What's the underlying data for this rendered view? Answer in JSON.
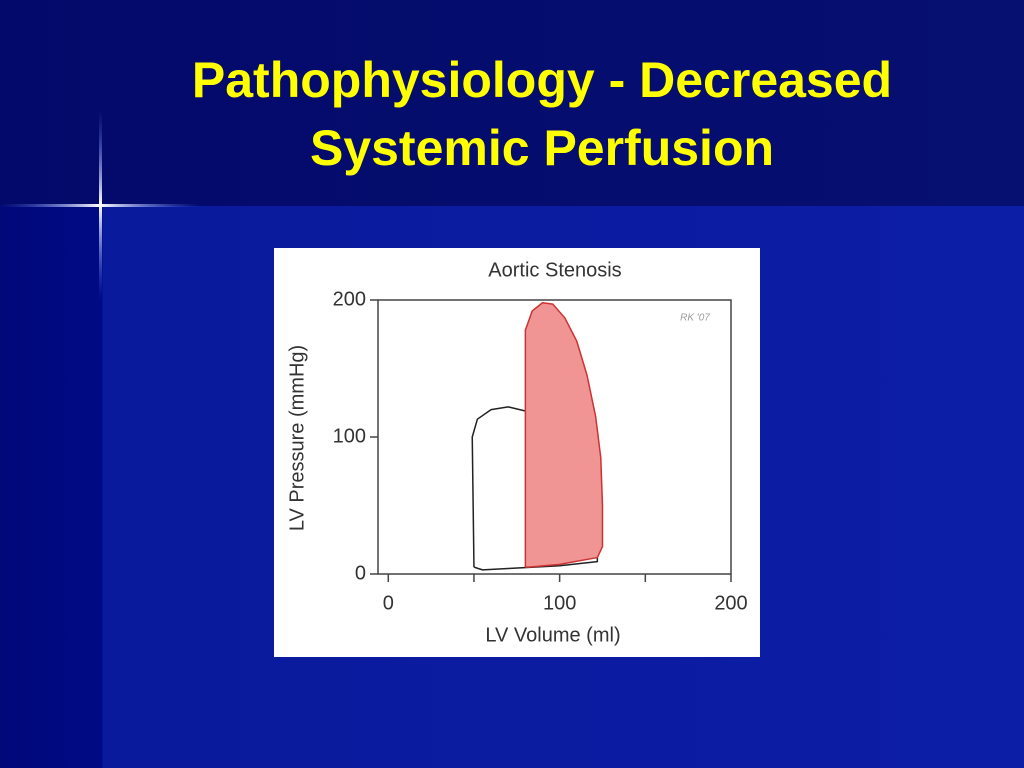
{
  "slide_title": [
    "Pathophysiology - Decreased",
    "Systemic Perfusion"
  ],
  "chart_data": {
    "type": "line",
    "title": "Aortic Stenosis",
    "x_label": "LV  Volume (ml)",
    "y_label": "LV  Pressure (mmHg)",
    "annotation": "RK '07",
    "xlim": [
      -6,
      200
    ],
    "ylim": [
      0,
      200
    ],
    "xticks": [
      0,
      100,
      200
    ],
    "yticks": [
      0,
      100,
      200
    ],
    "xminorticks": [
      50,
      150
    ],
    "series": [
      {
        "color": "#222222",
        "x": [
          50,
          49,
          52,
          60,
          70,
          80,
          95,
          108,
          118,
          122,
          122,
          100,
          70,
          55,
          50
        ],
        "values": [
          5,
          100,
          113,
          120,
          122,
          119,
          111,
          101,
          90,
          82,
          9,
          6,
          4,
          3,
          5
        ]
      },
      {
        "color": "#cc3333",
        "fill": "#f09494",
        "x": [
          80,
          80,
          80,
          84,
          90,
          96,
          103,
          110,
          116,
          121,
          124,
          125,
          125,
          122,
          100,
          82,
          80
        ],
        "values": [
          5,
          150,
          178,
          192,
          198,
          197,
          187,
          170,
          145,
          115,
          85,
          50,
          20,
          12,
          7,
          5,
          5
        ]
      }
    ]
  }
}
